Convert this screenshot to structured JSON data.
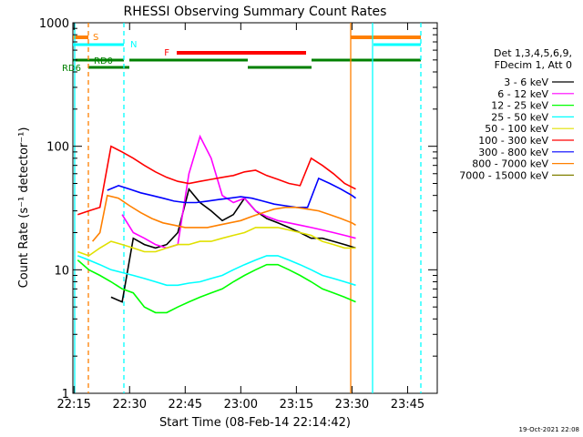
{
  "chart_data": {
    "type": "line",
    "title": "RHESSI Observing Summary Count Rates",
    "xlabel": "Start Time (08-Feb-14 22:14:42)",
    "ylabel": "Count Rate (s⁻¹ detector⁻¹)",
    "y_scale": "log",
    "xlim": [
      "22:14:42",
      "23:53:00"
    ],
    "ylim": [
      1,
      1000
    ],
    "x_ticks": [
      "22:15",
      "22:30",
      "22:45",
      "23:00",
      "23:15",
      "23:30",
      "23:45"
    ],
    "y_ticks": [
      "1",
      "10",
      "100",
      "1000"
    ],
    "grid": false,
    "legend_position": "right",
    "legend_header": [
      "Det 1,3,4,5,6,9,",
      "FDecim 1, Att 0"
    ],
    "date_stamp": "19-Oct-2021 22:08",
    "series": [
      {
        "name": "3 - 6 keV",
        "color": "#000000",
        "x": [
          "22:25",
          "22:28",
          "22:31",
          "22:34",
          "22:37",
          "22:40",
          "22:43",
          "22:46",
          "22:49",
          "22:52",
          "22:55",
          "22:58",
          "23:01",
          "23:04",
          "23:07",
          "23:10",
          "23:13",
          "23:16",
          "23:19",
          "23:22",
          "23:25",
          "23:28",
          "23:31"
        ],
        "y": [
          6,
          5.5,
          18,
          16,
          15,
          16,
          20,
          45,
          35,
          30,
          25,
          28,
          38,
          30,
          26,
          24,
          22,
          20,
          18,
          18,
          17,
          16,
          15
        ]
      },
      {
        "name": "6 - 12 keV",
        "color": "#ff00ff",
        "x": [
          "22:28",
          "22:31",
          "22:34",
          "22:37",
          "22:40",
          "22:43",
          "22:46",
          "22:49",
          "22:52",
          "22:55",
          "22:58",
          "23:01",
          "23:04",
          "23:07",
          "23:10",
          "23:13",
          "23:16",
          "23:19",
          "23:22",
          "23:25",
          "23:28",
          "23:31"
        ],
        "y": [
          28,
          20,
          18,
          16,
          15,
          16,
          60,
          120,
          80,
          40,
          35,
          38,
          30,
          27,
          25,
          24,
          23,
          22,
          21,
          20,
          19,
          18
        ]
      },
      {
        "name": "12 - 25 keV",
        "color": "#00ff00",
        "x": [
          "22:16",
          "22:19",
          "22:22",
          "22:25",
          "22:28",
          "22:31",
          "22:34",
          "22:37",
          "22:40",
          "22:43",
          "22:46",
          "22:49",
          "22:52",
          "22:55",
          "22:58",
          "23:01",
          "23:04",
          "23:07",
          "23:10",
          "23:13",
          "23:16",
          "23:19",
          "23:22",
          "23:25",
          "23:28",
          "23:31"
        ],
        "y": [
          12,
          10,
          9,
          8,
          7,
          6.5,
          5,
          4.5,
          4.5,
          5,
          5.5,
          6,
          6.5,
          7,
          8,
          9,
          10,
          11,
          11,
          10,
          9,
          8,
          7,
          6.5,
          6,
          5.5
        ]
      },
      {
        "name": "25 - 50 keV",
        "color": "#00ffff",
        "x": [
          "22:16",
          "22:19",
          "22:22",
          "22:25",
          "22:28",
          "22:31",
          "22:34",
          "22:37",
          "22:40",
          "22:43",
          "22:46",
          "22:49",
          "22:52",
          "22:55",
          "22:58",
          "23:01",
          "23:04",
          "23:07",
          "23:10",
          "23:13",
          "23:16",
          "23:19",
          "23:22",
          "23:25",
          "23:28",
          "23:31"
        ],
        "y": [
          13,
          12,
          11,
          10,
          9.5,
          9,
          8.5,
          8,
          7.5,
          7.5,
          7.8,
          8,
          8.5,
          9,
          10,
          11,
          12,
          13,
          13,
          12,
          11,
          10,
          9,
          8.5,
          8,
          7.5
        ]
      },
      {
        "name": "50 - 100 keV",
        "color": "#e0e000",
        "x": [
          "22:16",
          "22:19",
          "22:22",
          "22:25",
          "22:28",
          "22:31",
          "22:34",
          "22:37",
          "22:40",
          "22:43",
          "22:46",
          "22:49",
          "22:52",
          "22:55",
          "22:58",
          "23:01",
          "23:04",
          "23:07",
          "23:10",
          "23:13",
          "23:16",
          "23:19",
          "23:22",
          "23:25",
          "23:28",
          "23:31"
        ],
        "y": [
          14,
          13,
          15,
          17,
          16,
          15,
          14,
          14,
          15,
          16,
          16,
          17,
          17,
          18,
          19,
          20,
          22,
          22,
          22,
          21,
          20,
          19,
          17,
          16,
          15,
          15
        ]
      },
      {
        "name": "100 - 300 keV",
        "color": "#ff0000",
        "x": [
          "22:16",
          "22:19",
          "22:22",
          "22:25",
          "22:28",
          "22:31",
          "22:34",
          "22:37",
          "22:40",
          "22:43",
          "22:46",
          "22:49",
          "22:52",
          "22:55",
          "22:58",
          "23:01",
          "23:04",
          "23:07",
          "23:10",
          "23:13",
          "23:16",
          "23:19",
          "23:22",
          "23:25",
          "23:28",
          "23:31"
        ],
        "y": [
          28,
          30,
          32,
          100,
          90,
          80,
          70,
          62,
          56,
          52,
          50,
          52,
          54,
          56,
          58,
          62,
          64,
          58,
          54,
          50,
          48,
          80,
          70,
          60,
          50,
          45
        ]
      },
      {
        "name": "300 - 800 keV",
        "color": "#0000ff",
        "x": [
          "22:24",
          "22:27",
          "22:30",
          "22:33",
          "22:36",
          "22:39",
          "22:42",
          "22:45",
          "22:48",
          "22:51",
          "22:54",
          "22:57",
          "23:00",
          "23:03",
          "23:06",
          "23:09",
          "23:12",
          "23:15",
          "23:18",
          "23:21",
          "23:24",
          "23:27",
          "23:30",
          "23:31"
        ],
        "y": [
          44,
          48,
          45,
          42,
          40,
          38,
          36,
          35,
          35,
          36,
          37,
          38,
          39,
          38,
          36,
          34,
          33,
          32,
          32,
          55,
          50,
          45,
          40,
          38
        ]
      },
      {
        "name": "800 - 7000 keV",
        "color": "#ff8000",
        "x": [
          "22:20",
          "22:22",
          "22:24",
          "22:27",
          "22:30",
          "22:33",
          "22:36",
          "22:39",
          "22:42",
          "22:45",
          "22:48",
          "22:51",
          "22:54",
          "22:57",
          "23:00",
          "23:03",
          "23:06",
          "23:09",
          "23:12",
          "23:15",
          "23:18",
          "23:21",
          "23:24",
          "23:27",
          "23:30",
          "23:31"
        ],
        "y": [
          17,
          20,
          40,
          38,
          33,
          29,
          26,
          24,
          23,
          22,
          22,
          22,
          23,
          24,
          25,
          27,
          29,
          31,
          32,
          32,
          31,
          30,
          28,
          26,
          24,
          23
        ]
      },
      {
        "name": "7000 - 15000 keV",
        "color": "#808000",
        "x": [],
        "y": []
      }
    ],
    "flag_bars": [
      {
        "label": "S",
        "color": "#ff8000"
      },
      {
        "label": "N",
        "color": "#00ffff"
      },
      {
        "label": "F",
        "color": "#ff0000"
      },
      {
        "label": "RD0",
        "color": "#008000"
      },
      {
        "label": "RD6",
        "color": "#008000"
      }
    ]
  }
}
